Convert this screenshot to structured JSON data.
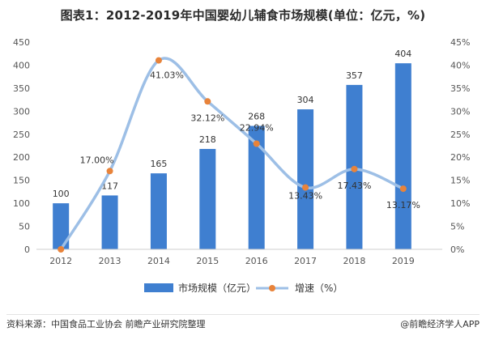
{
  "title": "图表1：2012-2019年中国婴幼儿辅食市场规模(单位：亿元，%)",
  "source": "资料来源：中国食品工业协会 前瞻产业研究院整理",
  "brand": "@前瞻经济学人APP",
  "colors": {
    "bar": "#3f7fd0",
    "line": "#9dbfe6",
    "marker": "#e8833a"
  },
  "chart_data": {
    "type": "bar",
    "categories": [
      "2012",
      "2013",
      "2014",
      "2015",
      "2016",
      "2017",
      "2018",
      "2019"
    ],
    "series": [
      {
        "name": "市场规模（亿元）",
        "type": "bar",
        "axis": "left",
        "values": [
          100,
          117,
          165,
          218,
          268,
          304,
          357,
          404
        ],
        "labels": [
          "100",
          "117",
          "165",
          "218",
          "268",
          "304",
          "357",
          "404"
        ]
      },
      {
        "name": "增速（%）",
        "type": "line",
        "axis": "right",
        "values": [
          0,
          17.0,
          41.03,
          32.12,
          22.94,
          13.43,
          17.43,
          13.17
        ],
        "labels": [
          "",
          "17.00%",
          "41.03%",
          "32.12%",
          "22.94%",
          "13.43%",
          "17.43%",
          "13.17%"
        ]
      }
    ],
    "y_left": {
      "min": 0,
      "max": 450,
      "ticks": [
        "0",
        "50",
        "100",
        "150",
        "200",
        "250",
        "300",
        "350",
        "400",
        "450"
      ]
    },
    "y_right": {
      "min": 0,
      "max": 45,
      "ticks": [
        "0%",
        "5%",
        "10%",
        "15%",
        "20%",
        "25%",
        "30%",
        "35%",
        "40%",
        "45%"
      ]
    },
    "grid": false,
    "legend": "bottom"
  }
}
